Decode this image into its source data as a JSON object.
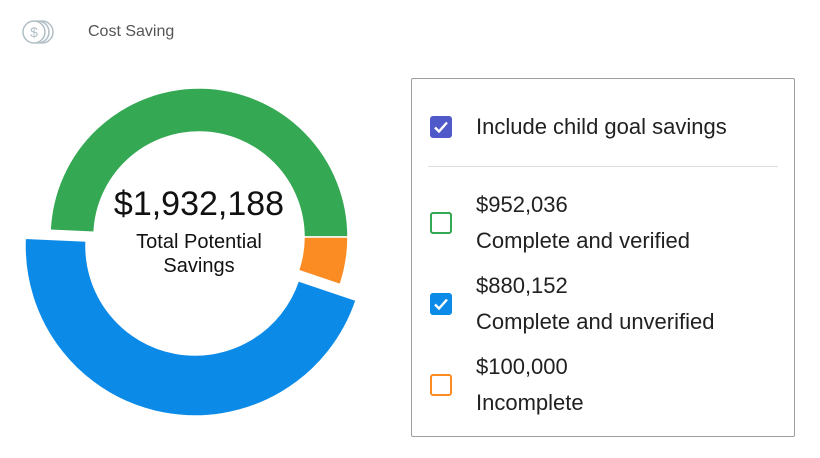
{
  "header": {
    "title": "Cost Saving",
    "icon": "coins-dollar-icon"
  },
  "chart_data": {
    "type": "pie",
    "variant": "donut",
    "center_value": "$1,932,188",
    "center_label": "Total Potential Savings",
    "slices": [
      {
        "name": "Complete and verified",
        "value": 952036,
        "color": "#34a853",
        "highlighted": false
      },
      {
        "name": "Incomplete",
        "value": 100000,
        "color": "#fb8c24",
        "highlighted": false
      },
      {
        "name": "Complete and unverified",
        "value": 880152,
        "color": "#0b8ae8",
        "highlighted": true
      }
    ]
  },
  "legend": {
    "include_child": {
      "label": "Include child goal savings",
      "checked": true,
      "color": "#5059c9"
    },
    "items": [
      {
        "amount": "$952,036",
        "label": "Complete and verified",
        "checked": false,
        "color": "#34a853"
      },
      {
        "amount": "$880,152",
        "label": "Complete and unverified",
        "checked": true,
        "color": "#0b8ae8"
      },
      {
        "amount": "$100,000",
        "label": "Incomplete",
        "checked": false,
        "color": "#fb8c24"
      }
    ]
  }
}
